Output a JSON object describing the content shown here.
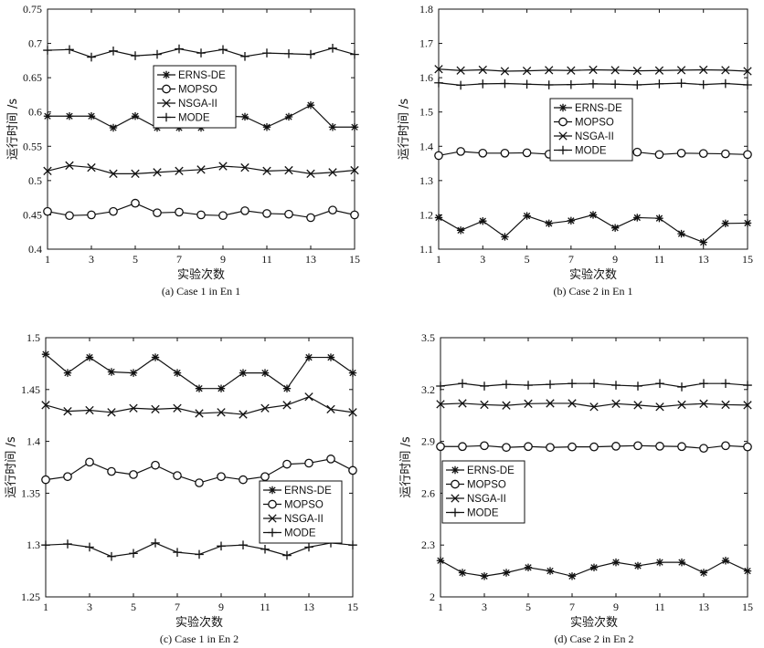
{
  "chart_data": [
    {
      "type": "line",
      "caption": "(a) Case 1 in En 1",
      "xlabel": "实验次数",
      "ylabel": "运行时间 /s",
      "x": [
        1,
        2,
        3,
        4,
        5,
        6,
        7,
        8,
        9,
        10,
        11,
        12,
        13,
        14,
        15
      ],
      "xticks": [
        1,
        3,
        5,
        7,
        9,
        11,
        13,
        15
      ],
      "xlim": [
        1,
        15
      ],
      "ylim": [
        0.4,
        0.75
      ],
      "yticks": [
        0.4,
        0.45,
        0.5,
        0.55,
        0.6,
        0.65,
        0.7,
        0.75
      ],
      "ytick_labels": [
        "0.4",
        "0.45",
        "0.5",
        "0.55",
        "0.6",
        "0.65",
        "0.7",
        "0.75"
      ],
      "legend_position": "upper-center",
      "series": [
        {
          "name": "ERNS-DE",
          "marker": "asterisk",
          "values": [
            0.594,
            0.594,
            0.594,
            0.577,
            0.594,
            0.577,
            0.577,
            0.577,
            0.594,
            0.593,
            0.578,
            0.593,
            0.61,
            0.578,
            0.578
          ]
        },
        {
          "name": "MOPSO",
          "marker": "circle",
          "values": [
            0.455,
            0.449,
            0.45,
            0.455,
            0.467,
            0.453,
            0.454,
            0.45,
            0.449,
            0.456,
            0.452,
            0.451,
            0.446,
            0.457,
            0.45
          ]
        },
        {
          "name": "NSGA-II",
          "marker": "x",
          "values": [
            0.514,
            0.522,
            0.519,
            0.51,
            0.51,
            0.512,
            0.514,
            0.516,
            0.521,
            0.519,
            0.514,
            0.515,
            0.51,
            0.512,
            0.515
          ]
        },
        {
          "name": "MODE",
          "marker": "plus",
          "values": [
            0.69,
            0.691,
            0.68,
            0.689,
            0.682,
            0.684,
            0.692,
            0.686,
            0.691,
            0.681,
            0.686,
            0.685,
            0.684,
            0.693,
            0.684
          ]
        }
      ]
    },
    {
      "type": "line",
      "caption": "(b) Case 2 in En 1",
      "xlabel": "实验次数",
      "ylabel": "运行时间 /s",
      "x": [
        1,
        2,
        3,
        4,
        5,
        6,
        7,
        8,
        9,
        10,
        11,
        12,
        13,
        14,
        15
      ],
      "xticks": [
        1,
        3,
        5,
        7,
        9,
        11,
        13,
        15
      ],
      "xlim": [
        1,
        15
      ],
      "ylim": [
        1.1,
        1.8
      ],
      "yticks": [
        1.1,
        1.2,
        1.3,
        1.4,
        1.5,
        1.6,
        1.7,
        1.8
      ],
      "ytick_labels": [
        "1.1",
        "1.2",
        "1.3",
        "1.4",
        "1.5",
        "1.6",
        "1.7",
        "1.8"
      ],
      "legend_position": "middle-center",
      "series": [
        {
          "name": "ERNS-DE",
          "marker": "asterisk",
          "values": [
            1.192,
            1.155,
            1.182,
            1.136,
            1.197,
            1.175,
            1.183,
            1.2,
            1.162,
            1.192,
            1.19,
            1.145,
            1.12,
            1.175,
            1.176
          ]
        },
        {
          "name": "MOPSO",
          "marker": "circle",
          "values": [
            1.373,
            1.385,
            1.38,
            1.38,
            1.381,
            1.377,
            1.378,
            1.381,
            1.381,
            1.383,
            1.376,
            1.38,
            1.379,
            1.378,
            1.376
          ]
        },
        {
          "name": "NSGA-II",
          "marker": "x",
          "values": [
            1.625,
            1.621,
            1.623,
            1.619,
            1.62,
            1.622,
            1.621,
            1.623,
            1.622,
            1.62,
            1.621,
            1.622,
            1.623,
            1.622,
            1.619
          ]
        },
        {
          "name": "MODE",
          "marker": "plus",
          "values": [
            1.585,
            1.578,
            1.582,
            1.583,
            1.581,
            1.579,
            1.58,
            1.582,
            1.581,
            1.579,
            1.582,
            1.584,
            1.58,
            1.583,
            1.579
          ]
        }
      ]
    },
    {
      "type": "line",
      "caption": "(c) Case 1 in En 2",
      "xlabel": "实验次数",
      "ylabel": "运行时间 /s",
      "x": [
        1,
        2,
        3,
        4,
        5,
        6,
        7,
        8,
        9,
        10,
        11,
        12,
        13,
        14,
        15
      ],
      "xticks": [
        1,
        3,
        5,
        7,
        9,
        11,
        13,
        15
      ],
      "xlim": [
        1,
        15
      ],
      "ylim": [
        1.25,
        1.5
      ],
      "yticks": [
        1.25,
        1.3,
        1.35,
        1.4,
        1.45,
        1.5
      ],
      "ytick_labels": [
        "1.25",
        "1.3",
        "1.35",
        "1.4",
        "1.45",
        "1.5"
      ],
      "legend_position": "lower-right",
      "series": [
        {
          "name": "ERNS-DE",
          "marker": "asterisk",
          "values": [
            1.484,
            1.466,
            1.481,
            1.467,
            1.466,
            1.481,
            1.466,
            1.451,
            1.451,
            1.466,
            1.466,
            1.451,
            1.481,
            1.481,
            1.466
          ]
        },
        {
          "name": "MOPSO",
          "marker": "circle",
          "values": [
            1.363,
            1.366,
            1.38,
            1.371,
            1.368,
            1.377,
            1.367,
            1.36,
            1.366,
            1.363,
            1.366,
            1.378,
            1.379,
            1.383,
            1.372
          ]
        },
        {
          "name": "NSGA-II",
          "marker": "x",
          "values": [
            1.435,
            1.429,
            1.43,
            1.428,
            1.432,
            1.431,
            1.432,
            1.427,
            1.428,
            1.426,
            1.432,
            1.435,
            1.443,
            1.431,
            1.428
          ]
        },
        {
          "name": "MODE",
          "marker": "plus",
          "values": [
            1.3,
            1.301,
            1.298,
            1.289,
            1.292,
            1.302,
            1.293,
            1.291,
            1.299,
            1.3,
            1.296,
            1.29,
            1.298,
            1.302,
            1.3
          ]
        }
      ]
    },
    {
      "type": "line",
      "caption": "(d) Case 2 in En 2",
      "xlabel": "实验次数",
      "ylabel": "运行时间 /s",
      "x": [
        1,
        2,
        3,
        4,
        5,
        6,
        7,
        8,
        9,
        10,
        11,
        12,
        13,
        14,
        15
      ],
      "xticks": [
        1,
        3,
        5,
        7,
        9,
        11,
        13,
        15
      ],
      "xlim": [
        1,
        15
      ],
      "ylim": [
        2.0,
        3.5
      ],
      "yticks": [
        2.0,
        2.3,
        2.6,
        2.9,
        3.2,
        3.5
      ],
      "ytick_labels": [
        "2",
        "2.3",
        "2.6",
        "2.9",
        "3.2",
        "3.5"
      ],
      "legend_position": "middle-left",
      "series": [
        {
          "name": "ERNS-DE",
          "marker": "asterisk",
          "values": [
            2.21,
            2.14,
            2.12,
            2.14,
            2.17,
            2.15,
            2.12,
            2.17,
            2.2,
            2.18,
            2.2,
            2.2,
            2.14,
            2.21,
            2.15
          ]
        },
        {
          "name": "MOPSO",
          "marker": "circle",
          "values": [
            2.87,
            2.87,
            2.875,
            2.865,
            2.87,
            2.865,
            2.868,
            2.868,
            2.872,
            2.875,
            2.872,
            2.87,
            2.86,
            2.875,
            2.868
          ]
        },
        {
          "name": "NSGA-II",
          "marker": "x",
          "values": [
            3.115,
            3.12,
            3.112,
            3.108,
            3.118,
            3.12,
            3.12,
            3.1,
            3.118,
            3.11,
            3.1,
            3.112,
            3.118,
            3.112,
            3.11
          ]
        },
        {
          "name": "MODE",
          "marker": "plus",
          "values": [
            3.22,
            3.235,
            3.22,
            3.23,
            3.225,
            3.23,
            3.235,
            3.235,
            3.225,
            3.22,
            3.235,
            3.215,
            3.235,
            3.235,
            3.225
          ]
        }
      ]
    }
  ]
}
